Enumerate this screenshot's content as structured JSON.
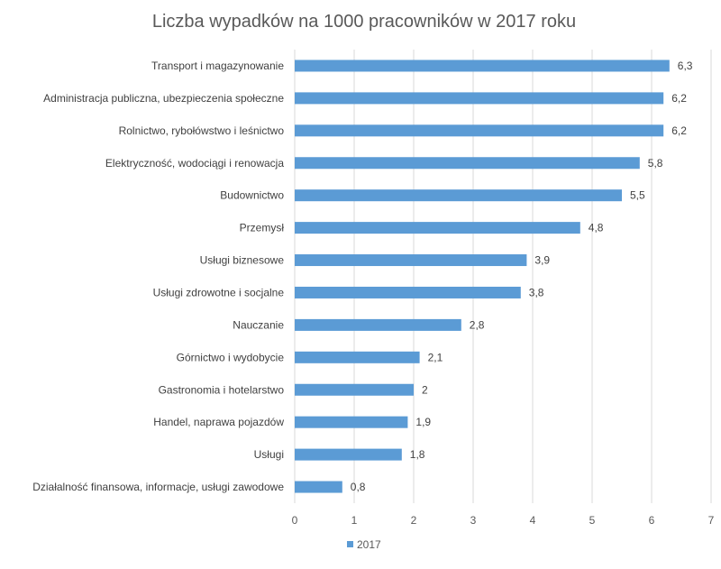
{
  "chart_data": {
    "type": "bar",
    "orientation": "horizontal",
    "title": "Liczba wypadków na 1000 pracowników w 2017 roku",
    "categories": [
      "Transport i magazynowanie",
      "Administracja publiczna, ubezpieczenia społeczne",
      "Rolnictwo, rybołówstwo i leśnictwo",
      "Elektryczność, wodociągi i renowacja",
      "Budownictwo",
      "Przemysł",
      "Usługi biznesowe",
      "Usługi zdrowotne i socjalne",
      "Nauczanie",
      "Górnictwo i wydobycie",
      "Gastronomia i hotelarstwo",
      "Handel, naprawa pojazdów",
      "Usługi",
      "Działalność finansowa, informacje, usługi zawodowe"
    ],
    "series": [
      {
        "name": "2017",
        "color": "#5b9bd5",
        "values": [
          6.3,
          6.2,
          6.2,
          5.8,
          5.5,
          4.8,
          3.9,
          3.8,
          2.8,
          2.1,
          2,
          1.9,
          1.8,
          0.8
        ],
        "value_labels": [
          "6,3",
          "6,2",
          "6,2",
          "5,8",
          "5,5",
          "4,8",
          "3,9",
          "3,8",
          "2,8",
          "2,1",
          "2",
          "1,9",
          "1,8",
          "0,8"
        ]
      }
    ],
    "xlim": [
      0,
      7
    ],
    "xticks": [
      "0",
      "1",
      "2",
      "3",
      "4",
      "5",
      "6",
      "7"
    ],
    "xlabel": "",
    "ylabel": "",
    "grid": true,
    "legend_position": "bottom"
  }
}
